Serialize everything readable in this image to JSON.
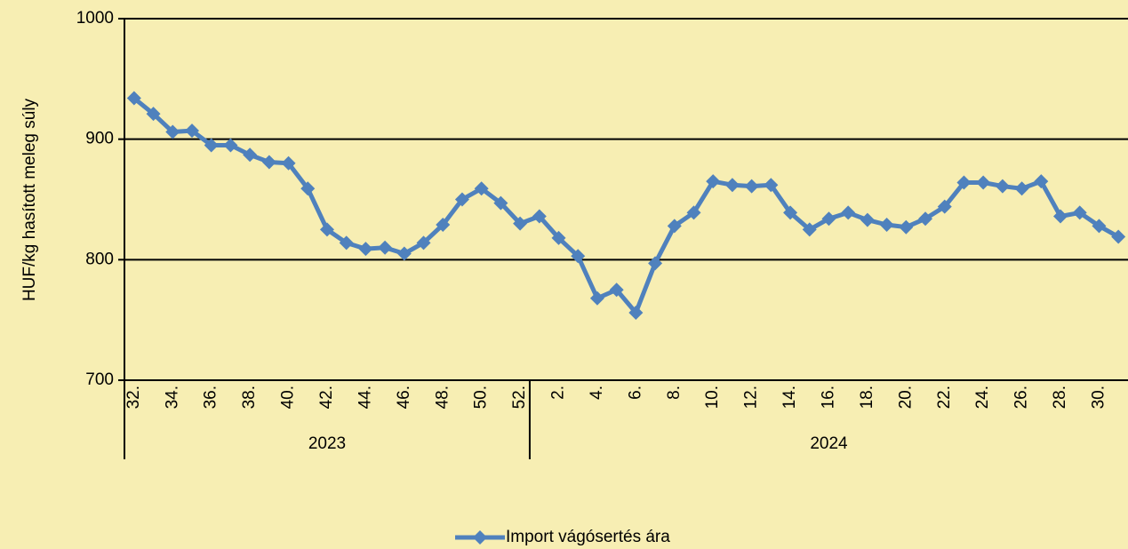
{
  "chart_data": {
    "type": "line",
    "y_label": "HUF/kg hasított meleg súly",
    "categories": [
      "32.",
      null,
      "34.",
      null,
      "36.",
      null,
      "38.",
      null,
      "40.",
      null,
      "42.",
      null,
      "44.",
      null,
      "46.",
      null,
      "48.",
      null,
      "50.",
      null,
      "52.",
      null,
      "2.",
      null,
      "4.",
      null,
      "6.",
      null,
      "8.",
      null,
      "10.",
      null,
      "12.",
      null,
      "14.",
      null,
      "16.",
      null,
      "18.",
      null,
      "20.",
      null,
      "22.",
      null,
      "24.",
      null,
      "26.",
      null,
      "28.",
      null,
      "30.",
      null
    ],
    "x_groups": [
      {
        "label": "2023",
        "start": 0,
        "end": 20
      },
      {
        "label": "2024",
        "start": 21,
        "end": 51
      }
    ],
    "series": [
      {
        "name": "Import vágósertés ára",
        "color": "#4f81bd",
        "values": [
          934,
          921,
          906,
          907,
          895,
          895,
          887,
          881,
          880,
          859,
          825,
          814,
          809,
          810,
          805,
          814,
          829,
          850,
          859,
          847,
          830,
          836,
          818,
          803,
          768,
          775,
          756,
          797,
          828,
          839,
          865,
          862,
          861,
          862,
          839,
          825,
          834,
          839,
          833,
          829,
          827,
          834,
          844,
          864,
          864,
          861,
          859,
          865,
          836,
          839,
          828,
          819
        ]
      }
    ],
    "ylim": [
      700,
      1000
    ],
    "yticks": [
      700,
      800,
      900,
      1000
    ],
    "grid": true,
    "legend": "bottom"
  }
}
